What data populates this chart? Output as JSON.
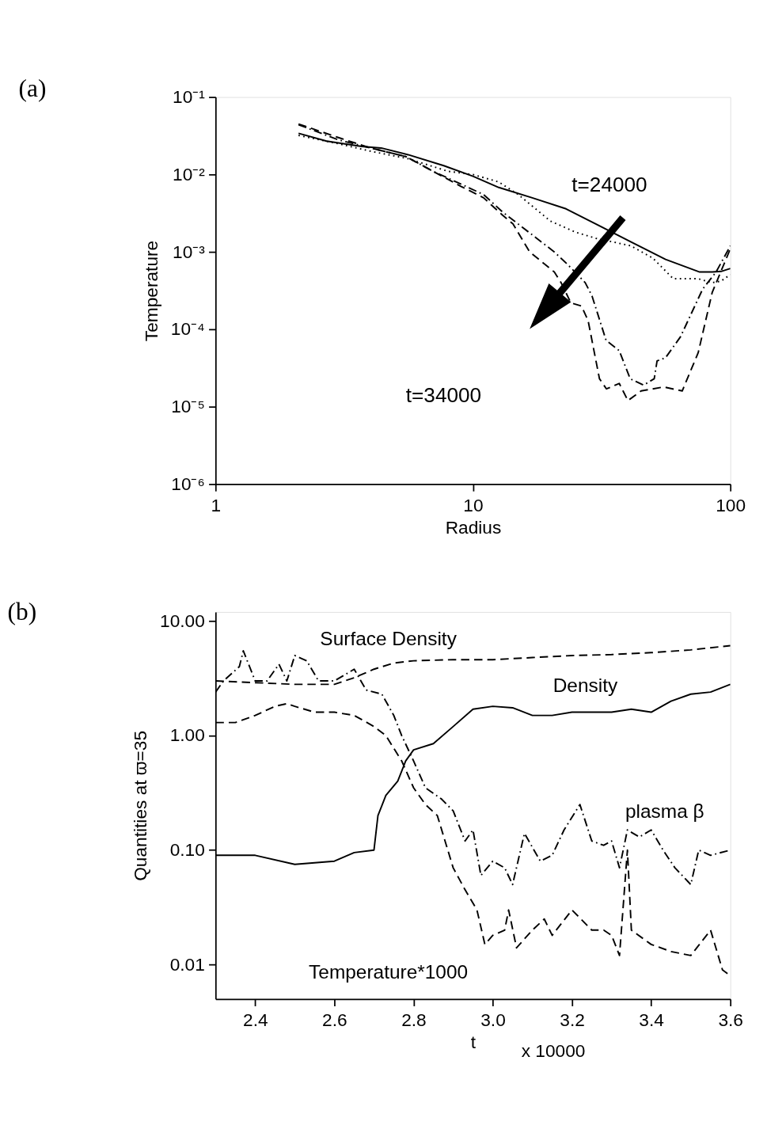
{
  "chart_data": [
    {
      "type": "line",
      "title": "(a)",
      "xlabel": "Radius",
      "ylabel": "Temperature",
      "log": "xy",
      "grid": false,
      "legend": false,
      "xlim": [
        1,
        100
      ],
      "xticks": [
        1,
        10,
        100
      ],
      "ylim": [
        1e-06,
        0.1
      ],
      "yticks": [
        {
          "value": 1e-06,
          "label": "10⁻⁶"
        },
        {
          "value": 1e-05,
          "label": "10⁻⁵"
        },
        {
          "value": 0.0001,
          "label": "10⁻⁴"
        },
        {
          "value": 0.001,
          "label": "10⁻³"
        },
        {
          "value": 0.01,
          "label": "10⁻²"
        },
        {
          "value": 0.1,
          "label": "10⁻¹"
        }
      ],
      "annotations": [
        "t=24000",
        "t=34000"
      ],
      "series": [
        {
          "color": "#000000",
          "line_style": "solid",
          "x": [
            2.1,
            2.7,
            3.7,
            4.4,
            5.6,
            7.7,
            10,
            12.6,
            17,
            23,
            30,
            41,
            56,
            76,
            85,
            92,
            100
          ],
          "values": [
            0.034,
            0.027,
            0.023,
            0.022,
            0.018,
            0.013,
            0.0095,
            0.0068,
            0.005,
            0.0036,
            0.0023,
            0.00135,
            0.0008,
            0.00055,
            0.00055,
            0.00056,
            0.00061
          ]
        },
        {
          "color": "#000000",
          "line_style": "dotted",
          "x": [
            2.1,
            3,
            4,
            5.6,
            8,
            10,
            12.6,
            15,
            20,
            25,
            30,
            41,
            50,
            60,
            75,
            85,
            92,
            100
          ],
          "values": [
            0.032,
            0.025,
            0.02,
            0.016,
            0.011,
            0.01,
            0.008,
            0.0055,
            0.0025,
            0.0018,
            0.0015,
            0.0012,
            0.00083,
            0.00045,
            0.00045,
            0.0004,
            0.00042,
            0.00051
          ]
        },
        {
          "color": "#000000",
          "line_style": "dashdot",
          "x": [
            2.1,
            3,
            4,
            5.5,
            7,
            9,
            11,
            13,
            20.7,
            23.4,
            27.3,
            29,
            32.9,
            37,
            40.8,
            46,
            50.6,
            51.9,
            56,
            64,
            78,
            88,
            100
          ],
          "values": [
            0.044,
            0.028,
            0.022,
            0.017,
            0.011,
            0.0075,
            0.0055,
            0.0033,
            0.001,
            0.00068,
            0.0004,
            0.00027,
            7.2e-05,
            5.3e-05,
            2.3e-05,
            1.9e-05,
            2.3e-05,
            3.9e-05,
            4.3e-05,
            8e-05,
            0.00033,
            0.00055,
            0.0012
          ]
        },
        {
          "color": "#000000",
          "line_style": "dashed",
          "x": [
            2.1,
            3,
            4,
            5.5,
            7,
            9,
            11,
            13,
            14.3,
            16.6,
            20.7,
            22,
            24,
            26.4,
            28,
            31,
            33,
            37,
            40,
            45,
            55,
            65,
            75,
            85,
            100
          ],
          "values": [
            0.045,
            0.03,
            0.022,
            0.017,
            0.011,
            0.007,
            0.005,
            0.003,
            0.0023,
            0.001,
            0.00055,
            0.0004,
            0.00022,
            0.0002,
            0.00013,
            2.3e-05,
            1.7e-05,
            2e-05,
            1.2e-05,
            1.6e-05,
            1.8e-05,
            1.6e-05,
            5e-05,
            0.0003,
            0.0011
          ]
        }
      ]
    },
    {
      "type": "line",
      "title": "(b)",
      "xlabel": "t",
      "ylabel": "Quantities at  ϖ=35",
      "log": "y",
      "grid": false,
      "legend": false,
      "xlim": [
        2.3,
        3.6
      ],
      "xticks": [
        {
          "value": 2.4,
          "label": "2.4"
        },
        {
          "value": 2.6,
          "label": "2.6"
        },
        {
          "value": 2.8,
          "label": "2.8"
        },
        {
          "value": 3.0,
          "label": "3.0"
        },
        {
          "value": 3.2,
          "label": "3.2"
        },
        {
          "value": 3.4,
          "label": "3.4"
        },
        {
          "value": 3.6,
          "label": "3.6"
        }
      ],
      "ylim": [
        0.005,
        12
      ],
      "yticks": [
        {
          "value": 0.01,
          "label": "0.01"
        },
        {
          "value": 0.1,
          "label": "0.10"
        },
        {
          "value": 1,
          "label": "1.00"
        },
        {
          "value": 10,
          "label": "10.00"
        }
      ],
      "annotations": [
        "x 10000"
      ],
      "series": [
        {
          "name": "Surface Density",
          "color": "#000000",
          "line_style": "dashed",
          "x": [
            2.3,
            2.4,
            2.5,
            2.6,
            2.65,
            2.7,
            2.75,
            2.8,
            2.9,
            3.0,
            3.1,
            3.2,
            3.3,
            3.4,
            3.5,
            3.6
          ],
          "values": [
            3.0,
            2.9,
            2.8,
            2.8,
            3.2,
            3.8,
            4.3,
            4.5,
            4.6,
            4.6,
            4.8,
            5.0,
            5.1,
            5.3,
            5.6,
            6.1
          ]
        },
        {
          "name": "Density",
          "color": "#000000",
          "line_style": "solid",
          "x": [
            2.3,
            2.4,
            2.5,
            2.6,
            2.65,
            2.7,
            2.71,
            2.73,
            2.76,
            2.78,
            2.8,
            2.85,
            2.9,
            2.95,
            3.0,
            3.05,
            3.1,
            3.15,
            3.2,
            3.25,
            3.3,
            3.35,
            3.4,
            3.45,
            3.5,
            3.55,
            3.6
          ],
          "values": [
            0.09,
            0.09,
            0.075,
            0.08,
            0.095,
            0.1,
            0.2,
            0.3,
            0.4,
            0.6,
            0.75,
            0.85,
            1.2,
            1.7,
            1.8,
            1.75,
            1.5,
            1.5,
            1.6,
            1.6,
            1.6,
            1.7,
            1.6,
            2.0,
            2.3,
            2.4,
            2.8
          ]
        },
        {
          "name": "plasma β",
          "color": "#000000",
          "line_style": "dashdot",
          "x": [
            2.3,
            2.32,
            2.36,
            2.37,
            2.4,
            2.43,
            2.46,
            2.48,
            2.5,
            2.53,
            2.56,
            2.6,
            2.65,
            2.68,
            2.72,
            2.75,
            2.77,
            2.8,
            2.83,
            2.87,
            2.9,
            2.93,
            2.95,
            2.97,
            3.0,
            3.03,
            3.05,
            3.08,
            3.12,
            3.15,
            3.18,
            3.22,
            3.25,
            3.28,
            3.3,
            3.32,
            3.34,
            3.37,
            3.4,
            3.43,
            3.46,
            3.5,
            3.52,
            3.55,
            3.6
          ],
          "values": [
            2.4,
            3.0,
            4.0,
            5.5,
            3.0,
            3.0,
            4.2,
            3.0,
            5.0,
            4.5,
            3.0,
            3.0,
            3.8,
            2.5,
            2.3,
            1.5,
            1.0,
            0.6,
            0.35,
            0.28,
            0.22,
            0.12,
            0.15,
            0.06,
            0.08,
            0.07,
            0.05,
            0.14,
            0.08,
            0.09,
            0.15,
            0.25,
            0.12,
            0.11,
            0.12,
            0.07,
            0.15,
            0.13,
            0.15,
            0.1,
            0.07,
            0.05,
            0.1,
            0.09,
            0.1
          ]
        },
        {
          "name": "Temperature*1000",
          "color": "#000000",
          "line_style": "dashed",
          "x": [
            2.3,
            2.35,
            2.4,
            2.45,
            2.48,
            2.5,
            2.55,
            2.6,
            2.65,
            2.7,
            2.73,
            2.77,
            2.8,
            2.83,
            2.86,
            2.9,
            2.93,
            2.96,
            2.98,
            3.0,
            3.03,
            3.04,
            3.06,
            3.1,
            3.13,
            3.15,
            3.2,
            3.25,
            3.28,
            3.3,
            3.32,
            3.34,
            3.35,
            3.4,
            3.45,
            3.5,
            3.55,
            3.58,
            3.6
          ],
          "values": [
            1.3,
            1.3,
            1.5,
            1.8,
            1.9,
            1.8,
            1.6,
            1.6,
            1.5,
            1.2,
            1.0,
            0.6,
            0.35,
            0.25,
            0.2,
            0.07,
            0.045,
            0.03,
            0.015,
            0.018,
            0.02,
            0.03,
            0.014,
            0.02,
            0.025,
            0.018,
            0.03,
            0.02,
            0.02,
            0.018,
            0.012,
            0.1,
            0.02,
            0.015,
            0.013,
            0.012,
            0.02,
            0.009,
            0.008
          ]
        }
      ]
    }
  ]
}
